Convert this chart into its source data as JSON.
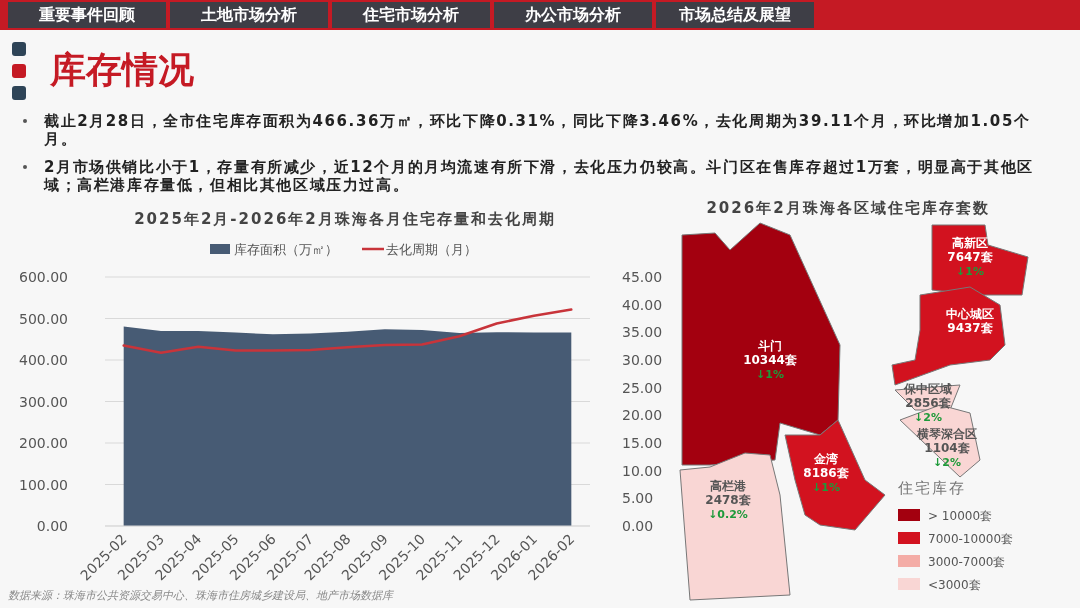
{
  "chart_data": [
    {
      "type": "other",
      "title": "库存情况",
      "categories": [
        "重要事件回顾",
        "土地市场分析",
        "住宅市场分析",
        "办公市场分析",
        "市场总结及展望"
      ],
      "annotations": [
        "截止2月28日，全市住宅库存面积为466.36万㎡，环比下降0.31%，同比下降3.46%，去化周期为39.11个月，环比增加1.05个月。",
        "2月市场供销比小于1，存量有所减少，近12个月的月均流速有所下滑，去化压力仍较高。斗门区在售库存超过1万套，明显高于其他区域；高栏港库存量低，但相比其他区域压力过高。",
        "数据来源：珠海市公共资源交易中心、珠海市住房城乡建设局、地产市场数据库"
      ]
    },
    {
      "type": "area",
      "title": "2025年2月-2026年2月珠海各月住宅存量和去化周期",
      "categories": [
        "2025-02",
        "2025-03",
        "2025-04",
        "2025-05",
        "2025-06",
        "2025-07",
        "2025-08",
        "2025-09",
        "2025-10",
        "2025-11",
        "2025-12",
        "2026-01",
        "2026-02"
      ],
      "series": [
        {
          "name": "库存面积（万㎡）",
          "type": "area",
          "color": "#475b74",
          "values": [
            481,
            470,
            470,
            466,
            462,
            464,
            468,
            474,
            472,
            465,
            467,
            466,
            466
          ]
        },
        {
          "name": "去化周期（月）",
          "type": "line",
          "axis": "y2",
          "color": "#c8343a",
          "values": [
            32.6,
            31.3,
            32.4,
            31.7,
            31.7,
            31.8,
            32.3,
            32.7,
            32.8,
            34.3,
            36.6,
            38.0,
            39.1
          ]
        }
      ],
      "ylim": [
        0,
        600
      ],
      "yticks": [
        {
          "value": 0,
          "label": "0.00"
        },
        {
          "value": 100,
          "label": "100.00"
        },
        {
          "value": 200,
          "label": "200.00"
        },
        {
          "value": 300,
          "label": "300.00"
        },
        {
          "value": 400,
          "label": "400.00"
        },
        {
          "value": 500,
          "label": "500.00"
        },
        {
          "value": 600,
          "label": "600.00"
        }
      ],
      "y2lim": [
        0,
        45
      ],
      "y2ticks": [
        {
          "value": 0,
          "label": "0.00"
        },
        {
          "value": 5,
          "label": "5.00"
        },
        {
          "value": 10,
          "label": "10.00"
        },
        {
          "value": 15,
          "label": "15.00"
        },
        {
          "value": 20,
          "label": "20.00"
        },
        {
          "value": 25,
          "label": "25.00"
        },
        {
          "value": 30,
          "label": "30.00"
        },
        {
          "value": 35,
          "label": "35.00"
        },
        {
          "value": 40,
          "label": "40.00"
        },
        {
          "value": 45,
          "label": "45.00"
        }
      ],
      "grid": "y",
      "legend": "top"
    },
    {
      "type": "other",
      "title": "2026年2月珠海各区域住宅库存套数",
      "legend_title": "住宅库存",
      "legend": "bottom right",
      "categories": [
        "斗门",
        "金湾",
        "高栏港",
        "高新区",
        "中心城区",
        "保中区域",
        "横琴深合区"
      ],
      "series": [
        {
          "name": "> 10000套",
          "color": "#a3000f",
          "values": [
            10344,
            null,
            null,
            null,
            null,
            null,
            null
          ],
          "value_labels": [
            "10344套",
            null,
            null,
            null,
            null,
            null,
            null
          ]
        },
        {
          "name": "7000-10000套",
          "color": "#d2121f",
          "values": [
            null,
            8186,
            null,
            7647,
            9437,
            null,
            null
          ],
          "value_labels": [
            null,
            "8186套",
            null,
            "7647套",
            "9437套",
            null,
            null
          ]
        },
        {
          "name": "3000-7000套",
          "color": "#f4aca6",
          "values": [
            null,
            null,
            null,
            null,
            null,
            null,
            null
          ]
        },
        {
          "name": "<3000套",
          "color": "#f9d6d4",
          "values": [
            null,
            null,
            2478,
            null,
            null,
            2856,
            1104
          ],
          "value_labels": [
            null,
            null,
            "2478套",
            null,
            null,
            "2856套",
            "1104套"
          ]
        }
      ],
      "annotations": [
        {
          "text": "↓1%",
          "x": "斗门"
        },
        {
          "text": "↓1%",
          "x": "金湾"
        },
        {
          "text": "↓0.2%",
          "x": "高栏港"
        },
        {
          "text": "↓1%",
          "x": "高新区"
        },
        {
          "text": "↓2%",
          "x": "保中区域"
        },
        {
          "text": "↓2%",
          "x": "横琴深合区"
        }
      ]
    }
  ]
}
